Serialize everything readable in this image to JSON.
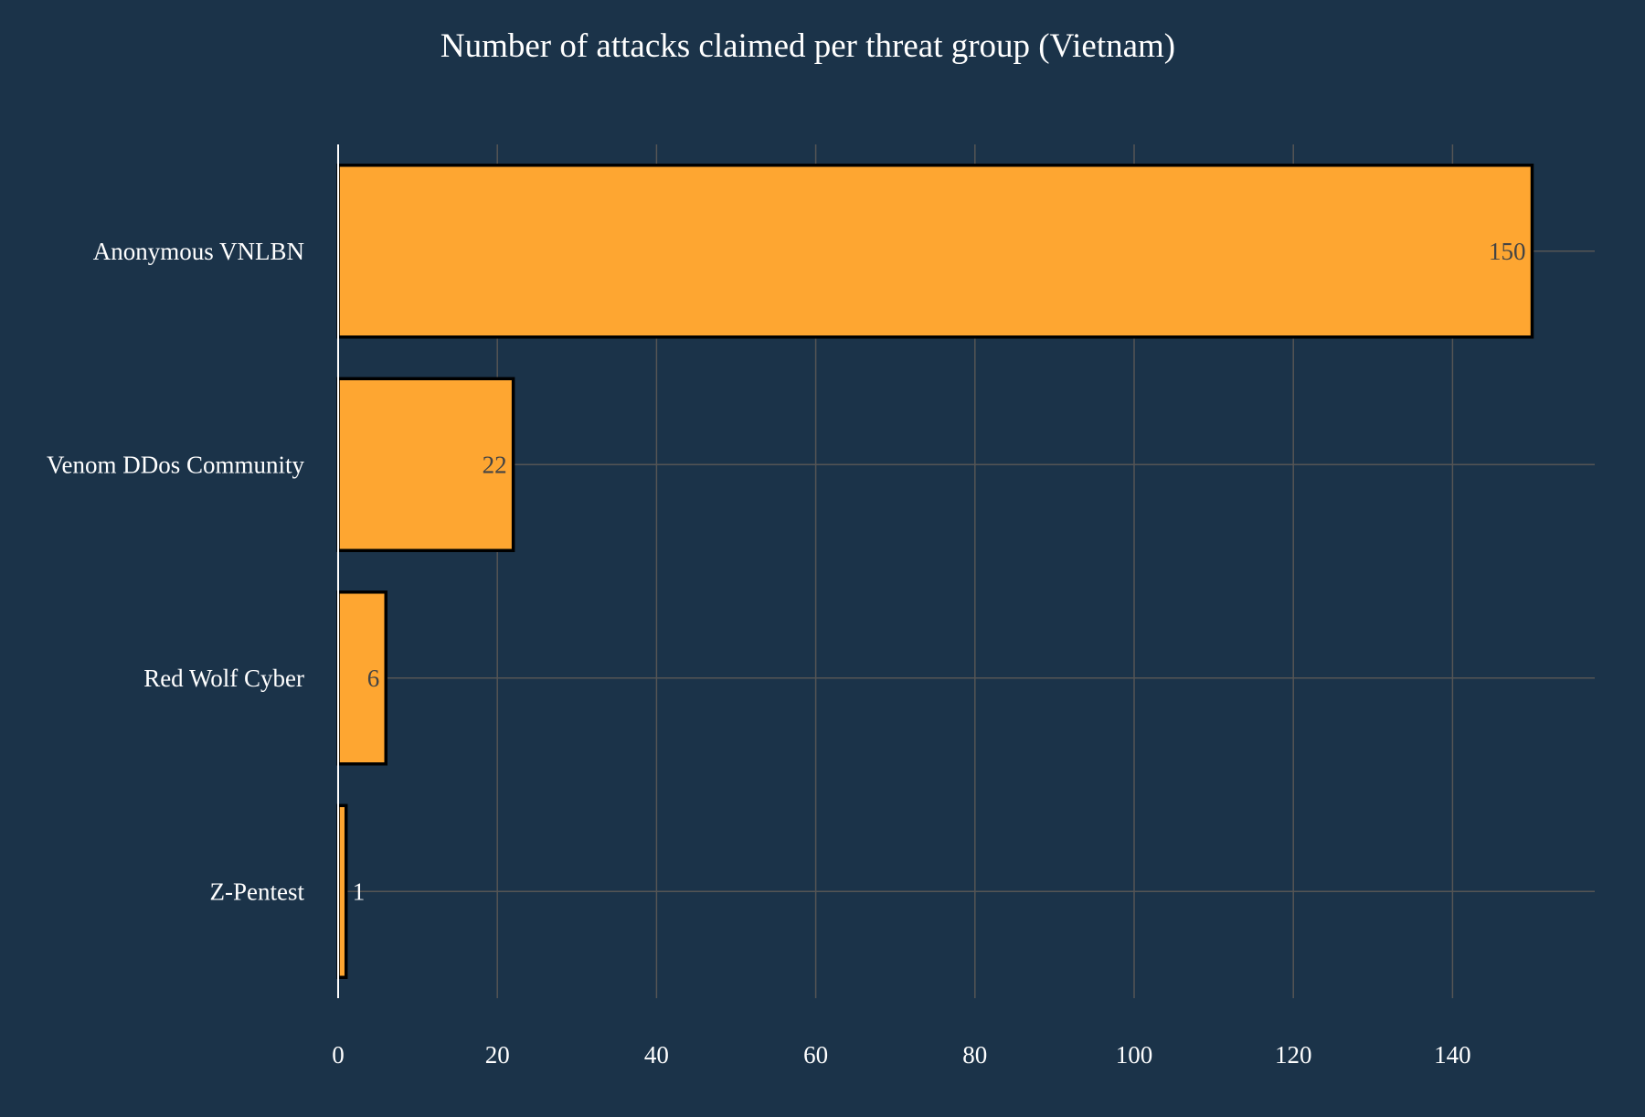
{
  "colors": {
    "background": "#1b3349",
    "bar_fill": "#fea631",
    "bar_outline": "#000000",
    "grid": "#555555",
    "text": "#ffffff",
    "label_inside": "#444444"
  },
  "chart_data": {
    "type": "bar",
    "orientation": "horizontal",
    "title": "Number of attacks claimed per threat group (Vietnam)",
    "xlabel": "",
    "ylabel": "",
    "categories": [
      "Anonymous VNLBN",
      "Venom DDos Community",
      "Red Wolf Cyber",
      "Z-Pentest"
    ],
    "values": [
      150,
      22,
      6,
      1
    ],
    "data_labels": [
      "150",
      "22",
      "6",
      "1"
    ],
    "xlim": [
      0,
      158
    ],
    "xticks": [
      0,
      20,
      40,
      60,
      80,
      100,
      120,
      140
    ],
    "xtick_labels": [
      "0",
      "20",
      "40",
      "60",
      "80",
      "100",
      "120",
      "140"
    ],
    "grid": true,
    "legend": "none"
  }
}
